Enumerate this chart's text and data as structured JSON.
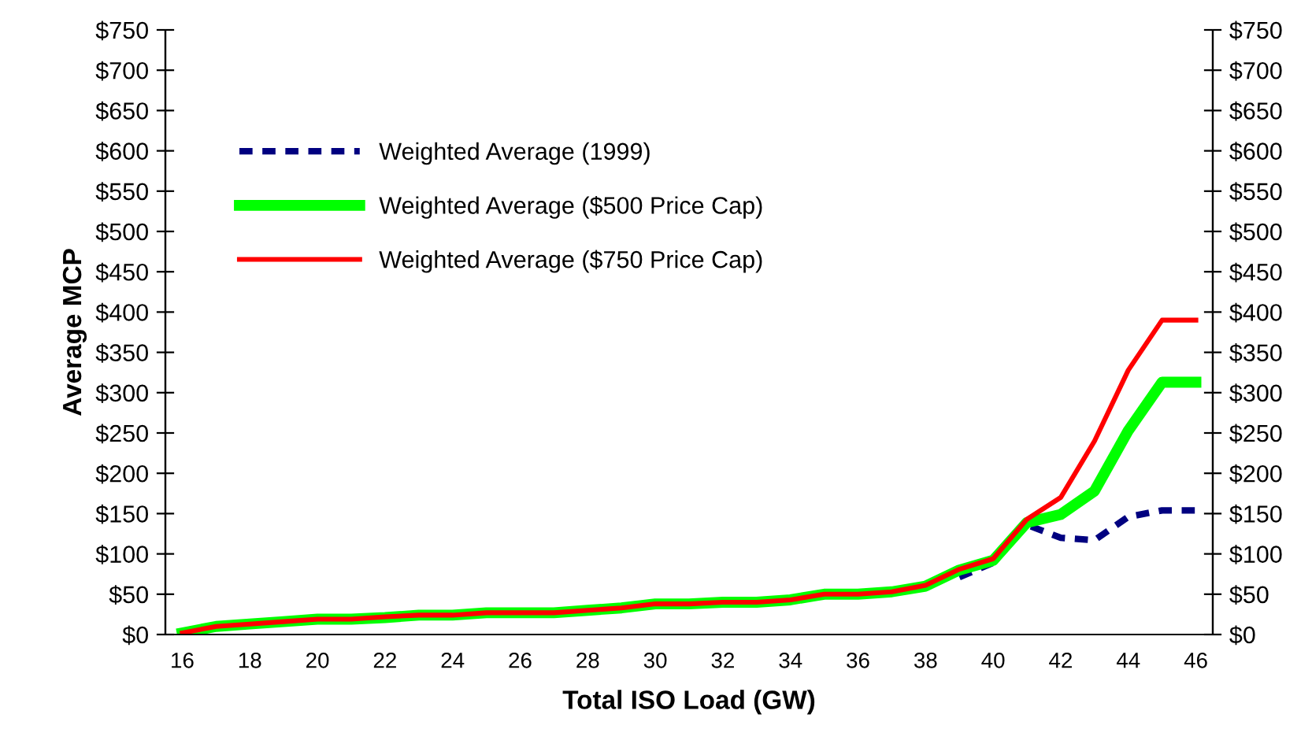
{
  "chart_data": {
    "type": "line",
    "xlabel": "Total ISO Load (GW)",
    "ylabel": "Average MCP",
    "categories": [
      "16",
      null,
      "18",
      null,
      "20",
      null,
      "22",
      null,
      "24",
      null,
      "26",
      null,
      "28",
      null,
      "30",
      null,
      "32",
      null,
      "34",
      null,
      "36",
      null,
      "38",
      null,
      "40",
      null,
      "42",
      null,
      "44",
      null,
      "46"
    ],
    "series": [
      {
        "name": "Weighted Average (1999)",
        "color": "#000080",
        "line_style": "dashed",
        "values": [
          null,
          null,
          null,
          null,
          null,
          null,
          null,
          null,
          null,
          null,
          null,
          null,
          null,
          null,
          null,
          null,
          null,
          null,
          null,
          null,
          null,
          null,
          null,
          71,
          89,
          136,
          120,
          117,
          146,
          154,
          154
        ]
      },
      {
        "name": "Weighted Average ($500 Price Cap)",
        "color": "#00ff00",
        "line_style": "solid",
        "values": [
          2,
          10,
          13,
          16,
          19,
          19,
          21,
          24,
          24,
          27,
          27,
          27,
          30,
          33,
          38,
          38,
          40,
          40,
          43,
          50,
          50,
          53,
          60,
          80,
          92,
          139,
          149,
          178,
          253,
          313,
          313
        ]
      },
      {
        "name": "Weighted Average ($750 Price Cap)",
        "color": "#ff0000",
        "line_style": "solid",
        "values": [
          2,
          10,
          13,
          16,
          19,
          19,
          22,
          24,
          24,
          27,
          27,
          27,
          30,
          33,
          38,
          38,
          40,
          40,
          43,
          50,
          50,
          53,
          61,
          81,
          94,
          143,
          170,
          240,
          328,
          390,
          390
        ]
      }
    ],
    "ylim": [
      0,
      750
    ],
    "yticks": [
      {
        "value": 0,
        "label": "$0"
      },
      {
        "value": 50,
        "label": "$50"
      },
      {
        "value": 100,
        "label": "$100"
      },
      {
        "value": 150,
        "label": "$150"
      },
      {
        "value": 200,
        "label": "$200"
      },
      {
        "value": 250,
        "label": "$250"
      },
      {
        "value": 300,
        "label": "$300"
      },
      {
        "value": 350,
        "label": "$350"
      },
      {
        "value": 400,
        "label": "$400"
      },
      {
        "value": 450,
        "label": "$450"
      },
      {
        "value": 500,
        "label": "$500"
      },
      {
        "value": 550,
        "label": "$550"
      },
      {
        "value": 600,
        "label": "$600"
      },
      {
        "value": 650,
        "label": "$650"
      },
      {
        "value": 700,
        "label": "$700"
      },
      {
        "value": 750,
        "label": "$750"
      }
    ],
    "y2lim": [
      0,
      750
    ],
    "y2ticks": [
      {
        "value": 0,
        "label": "$0"
      },
      {
        "value": 50,
        "label": "$50"
      },
      {
        "value": 100,
        "label": "$100"
      },
      {
        "value": 150,
        "label": "$150"
      },
      {
        "value": 200,
        "label": "$200"
      },
      {
        "value": 250,
        "label": "$250"
      },
      {
        "value": 300,
        "label": "$300"
      },
      {
        "value": 350,
        "label": "$350"
      },
      {
        "value": 400,
        "label": "$400"
      },
      {
        "value": 450,
        "label": "$450"
      },
      {
        "value": 500,
        "label": "$500"
      },
      {
        "value": 550,
        "label": "$550"
      },
      {
        "value": 600,
        "label": "$600"
      },
      {
        "value": 650,
        "label": "$650"
      },
      {
        "value": 700,
        "label": "$700"
      },
      {
        "value": 750,
        "label": "$750"
      }
    ],
    "grid": false,
    "legend": "top left",
    "marker": "none"
  }
}
